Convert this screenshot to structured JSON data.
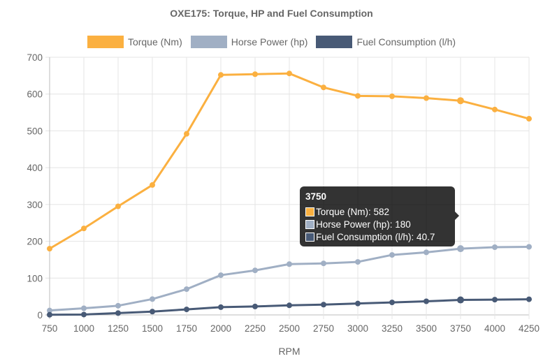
{
  "chart_data": {
    "type": "line",
    "title": "OXE175: Torque, HP and Fuel Consumption",
    "xlabel": "RPM",
    "ylabel": "",
    "x": [
      750,
      1000,
      1250,
      1500,
      1750,
      2000,
      2250,
      2500,
      2750,
      3000,
      3250,
      3500,
      3750,
      4000,
      4250
    ],
    "ylim": [
      0,
      700
    ],
    "yticks": [
      0,
      100,
      200,
      300,
      400,
      500,
      600,
      700
    ],
    "grid": true,
    "legend_position": "top",
    "series": [
      {
        "name": "Torque (Nm)",
        "color": "#FBB040",
        "values": [
          180,
          235,
          295,
          353,
          492,
          652,
          654,
          656,
          618,
          595,
          594,
          589,
          582,
          558,
          533
        ]
      },
      {
        "name": "Horse Power (hp)",
        "color": "#A0AFC4",
        "values": [
          12,
          18,
          25,
          43,
          70,
          108,
          121,
          138,
          140,
          144,
          163,
          170,
          180,
          184,
          185
        ]
      },
      {
        "name": "Fuel Consumption (l/h)",
        "color": "#485A76",
        "values": [
          0.5,
          1,
          5,
          9,
          15,
          21,
          23,
          26,
          28,
          31,
          34,
          37,
          40.7,
          41.5,
          42.5
        ]
      }
    ]
  },
  "tooltip": {
    "title": "3750",
    "rows": [
      {
        "label": "Torque (Nm): 582",
        "color": "#FBB040"
      },
      {
        "label": "Horse Power (hp): 180",
        "color": "#A0AFC4"
      },
      {
        "label": "Fuel Consumption (l/h): 40.7",
        "color": "#485A76"
      }
    ],
    "active_x": 3750
  }
}
